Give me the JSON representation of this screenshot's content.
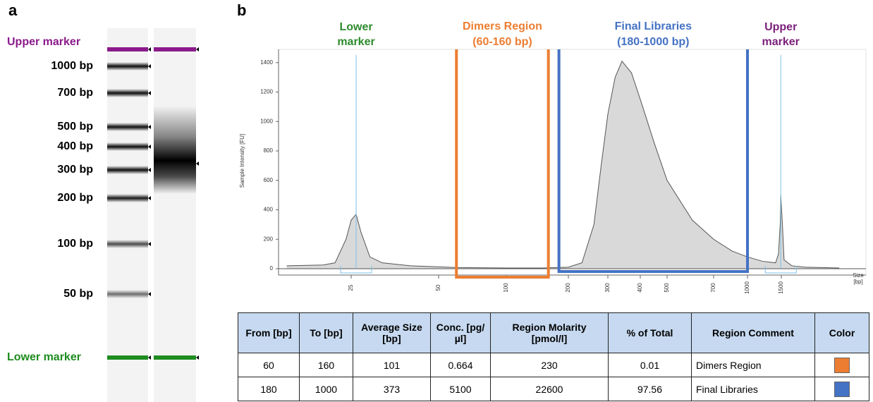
{
  "panels": [
    "a",
    "b"
  ],
  "gel": {
    "upper_marker": "Upper marker",
    "lower_marker": "Lower marker",
    "ladder_labels": [
      "1000 bp",
      "700 bp",
      "500 bp",
      "400 bp",
      "300 bp",
      "200 bp",
      "100 bp",
      "50 bp"
    ]
  },
  "chart_data": {
    "type": "area",
    "y_label": "Sample Intensity [FU]",
    "x_label": "Size [bp]",
    "x": [
      15,
      20,
      22,
      24,
      25,
      26,
      27,
      29,
      32,
      40,
      60,
      100,
      150,
      200,
      230,
      260,
      280,
      300,
      320,
      340,
      370,
      400,
      450,
      500,
      600,
      700,
      850,
      1000,
      1200,
      1400,
      1450,
      1480,
      1490,
      1520,
      1550,
      1700,
      2000,
      3000
    ],
    "values": [
      20,
      25,
      40,
      200,
      330,
      370,
      250,
      80,
      40,
      20,
      8,
      5,
      5,
      10,
      40,
      300,
      700,
      1050,
      1300,
      1410,
      1330,
      1150,
      850,
      600,
      330,
      200,
      120,
      80,
      50,
      40,
      100,
      300,
      500,
      300,
      60,
      20,
      10,
      5
    ],
    "color": "#555555",
    "fill": "#d9d9d9",
    "xlim": [
      15,
      3800
    ],
    "ylim": [
      0,
      1490
    ],
    "xticks": [
      25,
      50,
      100,
      200,
      300,
      400,
      500,
      700,
      1000,
      1500
    ],
    "yticks": [
      0,
      200,
      400,
      600,
      800,
      1000,
      1200,
      1400
    ],
    "annotations": [
      {
        "text": "Lower marker",
        "x": 26,
        "color": "#2e8b2e"
      },
      {
        "text": "Upper marker",
        "x": 1490,
        "color": "#7a1f7a"
      }
    ],
    "regions": [
      {
        "name": "Dimers Region",
        "label": "(60-160 bp)",
        "from": 60,
        "to": 160,
        "color": "#ed7d31"
      },
      {
        "name": "Final Libraries",
        "label": "(180-1000 bp)",
        "from": 180,
        "to": 1000,
        "color": "#4472c4"
      }
    ]
  },
  "table": {
    "headers": [
      "From [bp]",
      "To [bp]",
      "Average Size [bp]",
      "Conc. [pg/µl]",
      "Region Molarity [pmol/l]",
      "% of Total",
      "Region Comment",
      "Color"
    ],
    "rows": [
      [
        "60",
        "160",
        "101",
        "0.664",
        "230",
        "0.01",
        "Dimers Region"
      ],
      [
        "180",
        "1000",
        "373",
        "5100",
        "22600",
        "97.56",
        "Final Libraries"
      ]
    ]
  }
}
